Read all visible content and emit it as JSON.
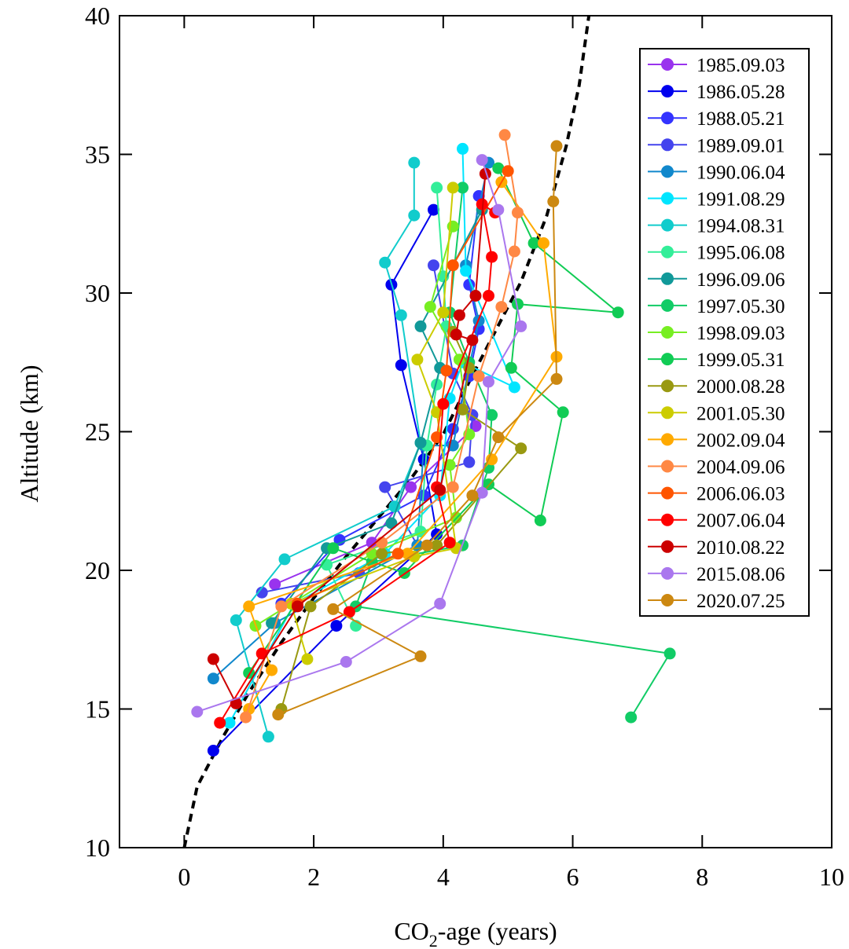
{
  "chart_data": {
    "type": "line",
    "xlabel": "CO2-age (years)",
    "xlabel_main": "CO",
    "xlabel_sub": "2",
    "xlabel_rest": "-age (years)",
    "ylabel": "Altitude (km)",
    "xlim": [
      -1,
      10
    ],
    "ylim": [
      10,
      40
    ],
    "x_ticks": [
      0,
      2,
      4,
      6,
      8,
      10
    ],
    "x_tick_labels": [
      "0",
      "2",
      "4",
      "6",
      "8",
      "10"
    ],
    "y_ticks": [
      10,
      15,
      20,
      25,
      30,
      35,
      40
    ],
    "y_tick_labels": [
      "10",
      "15",
      "20",
      "25",
      "30",
      "35",
      "40"
    ],
    "grid": false,
    "legend_position": "top-right",
    "reference_curve": {
      "style": "dashed",
      "color": "#000000",
      "points": [
        [
          0.0,
          10.0
        ],
        [
          0.2,
          12.2
        ],
        [
          0.6,
          14.0
        ],
        [
          1.0,
          15.6
        ],
        [
          1.5,
          17.4
        ],
        [
          2.0,
          19.0
        ],
        [
          2.5,
          20.5
        ],
        [
          3.0,
          21.9
        ],
        [
          3.5,
          23.3
        ],
        [
          4.0,
          24.9
        ],
        [
          4.4,
          26.8
        ],
        [
          4.8,
          28.6
        ],
        [
          5.2,
          30.4
        ],
        [
          5.6,
          32.8
        ],
        [
          5.9,
          35.3
        ],
        [
          6.1,
          37.5
        ],
        [
          6.25,
          40.0
        ]
      ]
    },
    "series": [
      {
        "name": "1985.09.03",
        "color": "#9933ee",
        "points": [
          [
            1.4,
            19.5
          ],
          [
            2.9,
            21.0
          ],
          [
            3.5,
            23.0
          ],
          [
            4.5,
            25.2
          ]
        ]
      },
      {
        "name": "1986.05.28",
        "color": "#0000ee",
        "points": [
          [
            0.45,
            13.5
          ],
          [
            2.35,
            18.0
          ],
          [
            3.9,
            21.3
          ],
          [
            3.7,
            24.0
          ],
          [
            3.35,
            27.4
          ],
          [
            3.2,
            30.3
          ],
          [
            3.85,
            33.0
          ]
        ]
      },
      {
        "name": "1988.05.21",
        "color": "#3333ff",
        "points": [
          [
            1.5,
            18.8
          ],
          [
            2.4,
            21.1
          ],
          [
            3.7,
            22.7
          ],
          [
            4.15,
            25.1
          ],
          [
            4.4,
            27.0
          ],
          [
            4.55,
            28.7
          ],
          [
            4.4,
            30.3
          ],
          [
            4.55,
            33.5
          ]
        ]
      },
      {
        "name": "1989.09.01",
        "color": "#4444ee",
        "points": [
          [
            1.2,
            19.2
          ],
          [
            2.7,
            19.9
          ],
          [
            3.6,
            20.9
          ],
          [
            3.1,
            23.0
          ],
          [
            4.4,
            23.9
          ],
          [
            4.45,
            25.6
          ],
          [
            4.15,
            27.1
          ],
          [
            3.85,
            31.0
          ]
        ]
      },
      {
        "name": "1990.06.04",
        "color": "#1188cc",
        "points": [
          [
            0.45,
            16.1
          ],
          [
            1.4,
            18.1
          ],
          [
            3.6,
            20.9
          ],
          [
            3.7,
            24.5
          ],
          [
            4.15,
            24.5
          ],
          [
            4.55,
            29.0
          ],
          [
            4.35,
            31.0
          ],
          [
            4.7,
            34.7
          ]
        ]
      },
      {
        "name": "1991.08.29",
        "color": "#00e5ff",
        "points": [
          [
            0.7,
            14.5
          ],
          [
            1.7,
            18.8
          ],
          [
            3.1,
            20.6
          ],
          [
            3.95,
            22.7
          ],
          [
            4.1,
            26.2
          ],
          [
            4.3,
            27.5
          ],
          [
            5.1,
            26.6
          ],
          [
            4.35,
            30.8
          ],
          [
            4.3,
            35.2
          ]
        ]
      },
      {
        "name": "1994.08.31",
        "color": "#11cccc",
        "points": [
          [
            1.3,
            14.0
          ],
          [
            0.8,
            18.2
          ],
          [
            1.55,
            20.4
          ],
          [
            3.25,
            22.3
          ],
          [
            3.65,
            24.6
          ],
          [
            3.35,
            29.2
          ],
          [
            3.1,
            31.1
          ],
          [
            3.55,
            32.8
          ],
          [
            3.55,
            34.7
          ]
        ]
      },
      {
        "name": "1995.06.08",
        "color": "#33ee99",
        "points": [
          [
            2.65,
            18.0
          ],
          [
            2.2,
            20.2
          ],
          [
            3.65,
            21.4
          ],
          [
            3.75,
            24.5
          ],
          [
            3.9,
            26.7
          ],
          [
            4.05,
            28.8
          ],
          [
            4.0,
            30.6
          ],
          [
            3.9,
            33.8
          ]
        ]
      },
      {
        "name": "1996.09.06",
        "color": "#119999",
        "points": [
          [
            1.35,
            18.1
          ],
          [
            2.2,
            20.8
          ],
          [
            3.2,
            21.7
          ],
          [
            3.65,
            24.6
          ],
          [
            3.95,
            27.3
          ],
          [
            3.65,
            28.8
          ],
          [
            4.15,
            31.0
          ],
          [
            4.6,
            33.0
          ]
        ]
      },
      {
        "name": "1997.05.30",
        "color": "#11cc66",
        "points": [
          [
            6.9,
            14.7
          ],
          [
            7.5,
            17.0
          ],
          [
            2.65,
            18.7
          ],
          [
            2.9,
            20.3
          ],
          [
            4.3,
            20.9
          ],
          [
            4.7,
            23.7
          ],
          [
            4.75,
            25.6
          ],
          [
            4.4,
            27.5
          ],
          [
            4.1,
            29.3
          ],
          [
            4.3,
            33.8
          ]
        ]
      },
      {
        "name": "1998.09.03",
        "color": "#77ee22",
        "points": [
          [
            1.1,
            18.0
          ],
          [
            2.9,
            20.6
          ],
          [
            4.2,
            21.9
          ],
          [
            4.1,
            23.8
          ],
          [
            4.4,
            24.9
          ],
          [
            4.25,
            27.6
          ],
          [
            3.8,
            29.5
          ],
          [
            4.15,
            32.4
          ]
        ]
      },
      {
        "name": "1999.05.31",
        "color": "#11cc55",
        "points": [
          [
            1.0,
            16.3
          ],
          [
            2.3,
            20.8
          ],
          [
            3.4,
            19.9
          ],
          [
            4.7,
            23.1
          ],
          [
            5.5,
            21.8
          ],
          [
            5.85,
            25.7
          ],
          [
            5.05,
            27.3
          ],
          [
            5.15,
            29.6
          ],
          [
            6.7,
            29.3
          ],
          [
            5.4,
            31.8
          ],
          [
            4.85,
            34.5
          ]
        ]
      },
      {
        "name": "2000.08.28",
        "color": "#999911",
        "points": [
          [
            1.5,
            15.0
          ],
          [
            1.95,
            18.7
          ],
          [
            3.05,
            20.6
          ],
          [
            3.9,
            20.9
          ],
          [
            5.2,
            24.4
          ],
          [
            4.3,
            25.8
          ],
          [
            4.4,
            27.3
          ],
          [
            4.15,
            28.6
          ]
        ]
      },
      {
        "name": "2001.05.30",
        "color": "#cccc00",
        "points": [
          [
            1.9,
            16.8
          ],
          [
            1.65,
            18.8
          ],
          [
            3.55,
            20.5
          ],
          [
            4.2,
            20.8
          ],
          [
            3.9,
            25.7
          ],
          [
            3.6,
            27.6
          ],
          [
            4.0,
            29.3
          ],
          [
            4.15,
            33.8
          ]
        ]
      },
      {
        "name": "2002.09.04",
        "color": "#ffaa00",
        "points": [
          [
            1.0,
            15.0
          ],
          [
            1.35,
            16.4
          ],
          [
            1.0,
            18.7
          ],
          [
            3.45,
            20.6
          ],
          [
            4.75,
            24.0
          ],
          [
            5.75,
            27.7
          ],
          [
            5.55,
            31.8
          ],
          [
            4.9,
            34.0
          ]
        ]
      },
      {
        "name": "2004.09.06",
        "color": "#ff8844",
        "points": [
          [
            0.95,
            14.7
          ],
          [
            1.5,
            18.7
          ],
          [
            3.05,
            21.0
          ],
          [
            4.15,
            23.0
          ],
          [
            4.55,
            27.0
          ],
          [
            4.9,
            29.5
          ],
          [
            5.1,
            31.5
          ],
          [
            5.15,
            32.9
          ],
          [
            4.95,
            35.7
          ]
        ]
      },
      {
        "name": "2006.06.03",
        "color": "#ff5500",
        "points": [
          [
            1.75,
            18.8
          ],
          [
            3.3,
            20.6
          ],
          [
            3.9,
            24.8
          ],
          [
            4.05,
            27.2
          ],
          [
            4.15,
            31.0
          ],
          [
            5.0,
            34.4
          ]
        ]
      },
      {
        "name": "2007.06.04",
        "color": "#ff0000",
        "points": [
          [
            0.55,
            14.5
          ],
          [
            1.2,
            17.0
          ],
          [
            2.55,
            18.5
          ],
          [
            4.1,
            21.0
          ],
          [
            3.9,
            23.0
          ],
          [
            4.0,
            26.0
          ],
          [
            4.7,
            29.9
          ],
          [
            4.75,
            31.3
          ],
          [
            4.6,
            33.2
          ],
          [
            4.8,
            32.9
          ]
        ]
      },
      {
        "name": "2010.08.22",
        "color": "#cc0000",
        "points": [
          [
            0.45,
            16.8
          ],
          [
            0.8,
            15.2
          ],
          [
            1.75,
            18.7
          ],
          [
            3.95,
            22.9
          ],
          [
            4.45,
            28.3
          ],
          [
            4.2,
            28.5
          ],
          [
            4.25,
            29.2
          ],
          [
            4.5,
            29.9
          ],
          [
            4.65,
            34.3
          ]
        ]
      },
      {
        "name": "2015.08.06",
        "color": "#aa77ee",
        "points": [
          [
            0.2,
            14.9
          ],
          [
            2.5,
            16.7
          ],
          [
            3.95,
            18.8
          ],
          [
            4.6,
            22.8
          ],
          [
            4.7,
            26.8
          ],
          [
            5.2,
            28.8
          ],
          [
            4.85,
            33.0
          ],
          [
            4.6,
            34.8
          ]
        ]
      },
      {
        "name": "2020.07.25",
        "color": "#cc8811",
        "points": [
          [
            1.45,
            14.8
          ],
          [
            3.65,
            16.9
          ],
          [
            2.3,
            18.6
          ],
          [
            3.75,
            20.9
          ],
          [
            4.45,
            22.7
          ],
          [
            4.85,
            24.8
          ],
          [
            5.75,
            26.9
          ],
          [
            5.7,
            33.3
          ],
          [
            5.75,
            35.3
          ]
        ]
      }
    ]
  }
}
